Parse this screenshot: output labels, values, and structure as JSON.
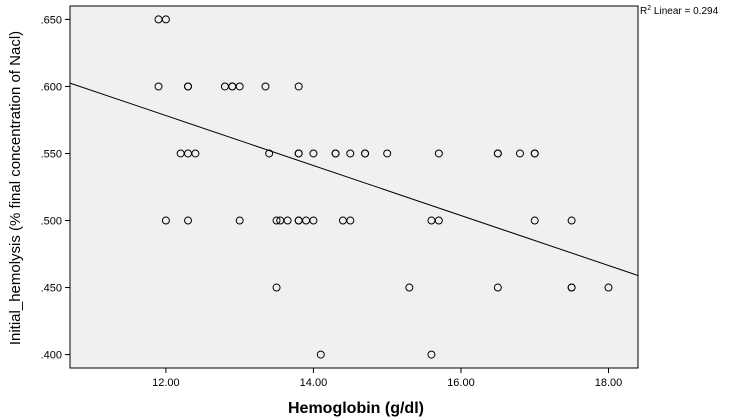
{
  "chart_data": {
    "type": "scatter",
    "xlabel": "Hemoglobin (g/dl)",
    "ylabel": "Initial_hemolysis (% final concentration of Nacl)",
    "xlim": [
      10.7,
      18.4
    ],
    "ylim": [
      0.39,
      0.66
    ],
    "x_ticks": [
      12,
      14,
      16,
      18
    ],
    "x_tick_labels": [
      "12.00",
      "14.00",
      "16.00",
      "18.00"
    ],
    "y_ticks": [
      0.4,
      0.45,
      0.5,
      0.55,
      0.6,
      0.65
    ],
    "y_tick_labels": [
      ".400",
      ".450",
      ".500",
      ".550",
      ".600",
      ".650"
    ],
    "grid": false,
    "fit_line": {
      "type": "linear",
      "label_prefix": "R",
      "label_superscript": "2",
      "label_suffix": " Linear = 0.294",
      "start": [
        10.7,
        0.6025
      ],
      "end": [
        18.4,
        0.459
      ]
    },
    "points": [
      {
        "x": 11.9,
        "y": 0.65
      },
      {
        "x": 12.0,
        "y": 0.65
      },
      {
        "x": 11.9,
        "y": 0.6
      },
      {
        "x": 12.3,
        "y": 0.6
      },
      {
        "x": 12.3,
        "y": 0.6
      },
      {
        "x": 12.8,
        "y": 0.6
      },
      {
        "x": 12.9,
        "y": 0.6
      },
      {
        "x": 12.9,
        "y": 0.6
      },
      {
        "x": 13.0,
        "y": 0.6
      },
      {
        "x": 13.35,
        "y": 0.6
      },
      {
        "x": 13.8,
        "y": 0.6
      },
      {
        "x": 12.2,
        "y": 0.55
      },
      {
        "x": 12.3,
        "y": 0.55
      },
      {
        "x": 12.4,
        "y": 0.55
      },
      {
        "x": 13.4,
        "y": 0.55
      },
      {
        "x": 13.8,
        "y": 0.55
      },
      {
        "x": 13.8,
        "y": 0.55
      },
      {
        "x": 14.0,
        "y": 0.55
      },
      {
        "x": 14.3,
        "y": 0.55
      },
      {
        "x": 14.3,
        "y": 0.55
      },
      {
        "x": 14.5,
        "y": 0.55
      },
      {
        "x": 14.7,
        "y": 0.55
      },
      {
        "x": 14.7,
        "y": 0.55
      },
      {
        "x": 15.0,
        "y": 0.55
      },
      {
        "x": 15.7,
        "y": 0.55
      },
      {
        "x": 16.5,
        "y": 0.55
      },
      {
        "x": 16.5,
        "y": 0.55
      },
      {
        "x": 16.8,
        "y": 0.55
      },
      {
        "x": 17.0,
        "y": 0.55
      },
      {
        "x": 17.0,
        "y": 0.55
      },
      {
        "x": 12.0,
        "y": 0.5
      },
      {
        "x": 12.3,
        "y": 0.5
      },
      {
        "x": 13.0,
        "y": 0.5
      },
      {
        "x": 13.5,
        "y": 0.5
      },
      {
        "x": 13.55,
        "y": 0.5
      },
      {
        "x": 13.65,
        "y": 0.5
      },
      {
        "x": 13.8,
        "y": 0.5
      },
      {
        "x": 13.8,
        "y": 0.5
      },
      {
        "x": 13.9,
        "y": 0.5
      },
      {
        "x": 14.0,
        "y": 0.5
      },
      {
        "x": 14.4,
        "y": 0.5
      },
      {
        "x": 14.5,
        "y": 0.5
      },
      {
        "x": 15.6,
        "y": 0.5
      },
      {
        "x": 15.7,
        "y": 0.5
      },
      {
        "x": 17.0,
        "y": 0.5
      },
      {
        "x": 17.5,
        "y": 0.5
      },
      {
        "x": 13.5,
        "y": 0.45
      },
      {
        "x": 15.3,
        "y": 0.45
      },
      {
        "x": 16.5,
        "y": 0.45
      },
      {
        "x": 17.5,
        "y": 0.45
      },
      {
        "x": 17.5,
        "y": 0.45
      },
      {
        "x": 18.0,
        "y": 0.45
      },
      {
        "x": 14.1,
        "y": 0.4
      },
      {
        "x": 15.6,
        "y": 0.4
      }
    ],
    "colors": {
      "plot_background": "#f0f0f0",
      "page_background": "#ffffff",
      "marker_stroke": "#000000",
      "line": "#000000"
    }
  }
}
